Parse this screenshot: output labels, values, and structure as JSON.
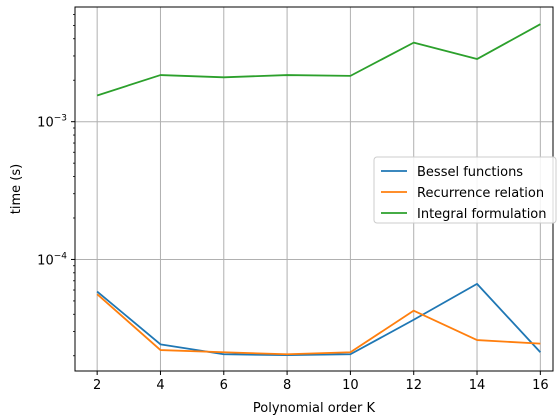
{
  "chart_data": {
    "type": "line",
    "xlabel": "Polynomial order K",
    "ylabel": "time (s)",
    "yscale": "log",
    "grid": true,
    "legend_position": "center-right",
    "x": [
      2,
      4,
      6,
      8,
      10,
      12,
      14,
      16
    ],
    "x_ticks": [
      "2",
      "4",
      "6",
      "8",
      "10",
      "12",
      "14",
      "16"
    ],
    "xlim": [
      1.3,
      16.4
    ],
    "ylim": [
      1.55e-05,
      0.0068
    ],
    "y_ticks": [
      {
        "value": 0.0001,
        "base": "10",
        "exp": "−4"
      },
      {
        "value": 0.001,
        "base": "10",
        "exp": "−3"
      }
    ],
    "series": [
      {
        "name": "Bessel functions",
        "color": "#1f77b4",
        "values": [
          5.85e-05,
          2.42e-05,
          2.05e-05,
          2.02e-05,
          2.05e-05,
          3.65e-05,
          6.65e-05,
          2.12e-05
        ]
      },
      {
        "name": "Recurrence relation",
        "color": "#ff7f0e",
        "values": [
          5.6e-05,
          2.2e-05,
          2.12e-05,
          2.05e-05,
          2.12e-05,
          4.25e-05,
          2.6e-05,
          2.45e-05
        ]
      },
      {
        "name": "Integral formulation",
        "color": "#2ca02c",
        "values": [
          0.00155,
          0.00218,
          0.0021,
          0.00218,
          0.00215,
          0.00375,
          0.00285,
          0.0051
        ]
      }
    ]
  }
}
